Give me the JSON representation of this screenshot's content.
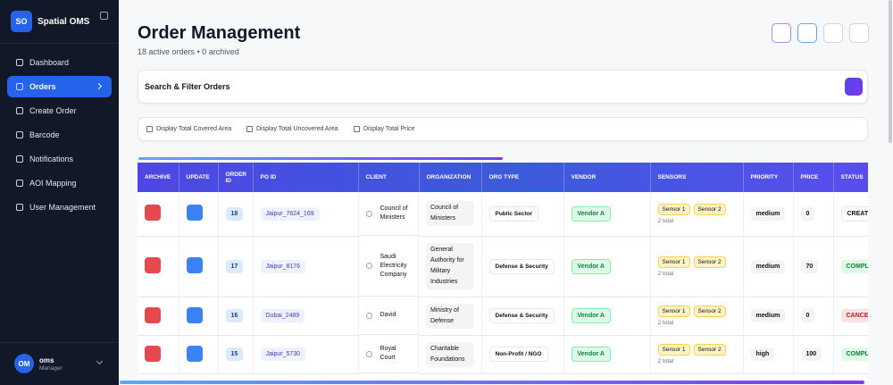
{
  "sidebar": {
    "logo": "SO",
    "app_name": "Spatial OMS",
    "nav": [
      "Dashboard",
      "Orders",
      "Create Order",
      "Barcode",
      "Notifications",
      "AOI Mapping",
      "User Management"
    ],
    "active_index": 1,
    "user": {
      "initials": "OM",
      "name": "oms",
      "role": "Manager"
    }
  },
  "header": {
    "title": "Order Management",
    "subtitle": "18 active orders • 0 archived"
  },
  "filter": {
    "title": "Search & Filter Orders"
  },
  "options": [
    "Display Total Covered Area",
    "Display Total Uncovered Area",
    "Display Total Price"
  ],
  "table": {
    "columns": [
      "ARCHIVE",
      "UPDATE",
      "ORDER ID",
      "PO ID",
      "CLIENT",
      "ORGANIZATION",
      "ORG TYPE",
      "VENDOR",
      "SENSORS",
      "PRIORITY",
      "PRICE",
      "STATUS"
    ],
    "rows": [
      {
        "order_id": 18,
        "po_id": "Jaipur_7624_169",
        "client": "Council of Ministers",
        "organization": "Council of Ministers",
        "org_type": "Public Sector",
        "vendor": "Vendor A",
        "sensors": [
          "Sensor 1",
          "Sensor 2"
        ],
        "sensors_total": "2 total",
        "priority": "medium",
        "price": 0,
        "status": "CREATED"
      },
      {
        "order_id": 17,
        "po_id": "Jaipur_8176",
        "client": "Saudi Electricity Company",
        "organization": "General Authority for Military Industries",
        "org_type": "Defense & Security",
        "vendor": "Vendor A",
        "sensors": [
          "Sensor 1",
          "Sensor 2"
        ],
        "sensors_total": "2 total",
        "priority": "medium",
        "price": 70,
        "status": "COMPLETED"
      },
      {
        "order_id": 16,
        "po_id": "Dubai_2489",
        "client": "David",
        "organization": "Ministry of Defense",
        "org_type": "Defense & Security",
        "vendor": "Vendor A",
        "sensors": [
          "Sensor 1",
          "Sensor 2"
        ],
        "sensors_total": "2 total",
        "priority": "medium",
        "price": 0,
        "status": "CANCELLED"
      },
      {
        "order_id": 15,
        "po_id": "Jaipur_5730",
        "client": "Royal Court",
        "organization": "Charitable Foundations",
        "org_type": "Non-Profit / NGO",
        "vendor": "Vendor A",
        "sensors": [
          "Sensor 1",
          "Sensor 2"
        ],
        "sensors_total": "2 total",
        "priority": "high",
        "price": 100,
        "status": "COMPLETED"
      }
    ]
  }
}
